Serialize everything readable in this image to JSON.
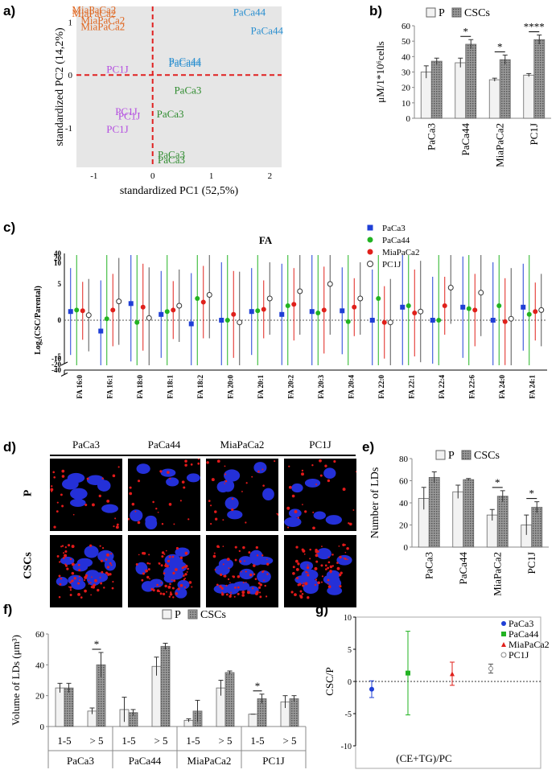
{
  "panel_labels": {
    "a": "a)",
    "b": "b)",
    "c": "c)",
    "d": "d)",
    "e": "e)",
    "f": "f)",
    "g": "g)"
  },
  "colors": {
    "PaCa3": "#1f3fd6",
    "PaCa44": "#22b322",
    "MiaPaCa2": "#e0201b",
    "PC1J": "#555555",
    "pca_PaCa3": "#2e8b2e",
    "pca_PaCa44": "#2a8fd0",
    "pca_MiaPaCa2": "#e0661f",
    "pca_PC1J": "#b44ee0",
    "dashed": "#e02020",
    "pca_bg": "#e6e6e6"
  },
  "legend_PC": {
    "P": "P",
    "CSCs": "CSCs"
  },
  "chart_data": [
    {
      "id": "a",
      "type": "scatter",
      "xlabel": "standardized PC1 (52,5%)",
      "ylabel": "standardized PC2 (14,2%)",
      "xlim": [
        -1.3,
        2.2
      ],
      "ylim": [
        -1.75,
        1.3
      ],
      "xticks": [
        -1,
        0,
        1,
        2
      ],
      "yticks": [
        1,
        0,
        -1
      ],
      "points": [
        {
          "label": "MiaPaCa2",
          "x": -1.0,
          "y": 1.25,
          "group": "MiaPaCa2"
        },
        {
          "label": "MiaPaCa2",
          "x": -1.0,
          "y": 1.18,
          "group": "MiaPaCa2"
        },
        {
          "label": "MiaPaCa2",
          "x": -0.85,
          "y": 1.05,
          "group": "MiaPaCa2"
        },
        {
          "label": "MiaPaCa2",
          "x": -0.85,
          "y": 0.93,
          "group": "MiaPaCa2"
        },
        {
          "label": "PaCa44",
          "x": 1.65,
          "y": 1.2,
          "group": "PaCa44"
        },
        {
          "label": "PaCa44",
          "x": 1.95,
          "y": 0.85,
          "group": "PaCa44"
        },
        {
          "label": "PaCa44",
          "x": 0.55,
          "y": 0.27,
          "group": "PaCa44"
        },
        {
          "label": "PaCa44",
          "x": 0.55,
          "y": 0.23,
          "group": "PaCa44"
        },
        {
          "label": "PC1J",
          "x": -0.6,
          "y": 0.12,
          "group": "PC1J"
        },
        {
          "label": "PaCa3",
          "x": 0.6,
          "y": -0.28,
          "group": "PaCa3"
        },
        {
          "label": "PC1J",
          "x": -0.45,
          "y": -0.68,
          "group": "PC1J"
        },
        {
          "label": "PC1J",
          "x": -0.4,
          "y": -0.77,
          "group": "PC1J"
        },
        {
          "label": "PaCa3",
          "x": 0.3,
          "y": -0.73,
          "group": "PaCa3"
        },
        {
          "label": "PC1J",
          "x": -0.6,
          "y": -1.02,
          "group": "PC1J"
        },
        {
          "label": "PaCa3",
          "x": 0.32,
          "y": -1.5,
          "group": "PaCa3"
        },
        {
          "label": "PaCa3",
          "x": 0.32,
          "y": -1.6,
          "group": "PaCa3"
        }
      ]
    },
    {
      "id": "b",
      "type": "bar",
      "ylabel": "μM/1*10⁶cells",
      "ylim": [
        0,
        60
      ],
      "yticks": [
        0,
        10,
        20,
        30,
        40,
        50,
        60
      ],
      "categories": [
        "PaCa3",
        "PaCa44",
        "MiaPaCa2",
        "PC1J"
      ],
      "series": [
        {
          "name": "P",
          "values": [
            30,
            36,
            25,
            28
          ],
          "errors": [
            4,
            3,
            1,
            1
          ]
        },
        {
          "name": "CSCs",
          "values": [
            37,
            48,
            38,
            51
          ],
          "errors": [
            2,
            3,
            3,
            3
          ]
        }
      ],
      "significance": [
        "",
        "*",
        "*",
        "****"
      ]
    },
    {
      "id": "c",
      "type": "scatter",
      "title": "FA",
      "ylabel": "Log₂(CSC/Parental)",
      "yticks": [
        "40",
        "20",
        "10",
        "5",
        "0",
        "-5",
        "-10",
        "-20",
        "-40"
      ],
      "categories": [
        "FA 16:0",
        "FA 16:1",
        "FA 18:0",
        "FA 18:1",
        "FA 18:2",
        "FA 20:0",
        "FA 20:1",
        "FA 20:2",
        "FA 20:3",
        "FA 20:4",
        "FA 22:0",
        "FA 22:1",
        "FA 22:4",
        "FA 22:6",
        "FA 24:0",
        "FA 24:1"
      ],
      "series": [
        {
          "name": "PaCa3",
          "values": [
            1.2,
            -1.5,
            2.3,
            0.8,
            -0.5,
            0.0,
            1.2,
            0.8,
            1.2,
            1.3,
            0.0,
            1.8,
            0.0,
            1.8,
            0.0,
            1.8
          ]
        },
        {
          "name": "PaCa44",
          "values": [
            1.4,
            0.2,
            -0.3,
            1.2,
            3.0,
            0.0,
            1.3,
            2.0,
            1.0,
            -0.2,
            3.0,
            2.0,
            0.0,
            1.6,
            2.0,
            0.8
          ]
        },
        {
          "name": "MiaPaCa2",
          "values": [
            1.3,
            1.4,
            1.8,
            1.4,
            2.5,
            0.8,
            1.5,
            2.2,
            1.4,
            1.8,
            -0.3,
            1.0,
            2.0,
            1.4,
            -0.2,
            1.2
          ]
        },
        {
          "name": "PC1J",
          "values": [
            0.7,
            2.6,
            0.3,
            2.0,
            3.5,
            -0.3,
            3.0,
            4.0,
            5.0,
            3.0,
            -0.3,
            1.2,
            4.5,
            3.8,
            0.2,
            1.4
          ]
        }
      ]
    },
    {
      "id": "e",
      "type": "bar",
      "ylabel": "Number of LDs",
      "ylim": [
        0,
        80
      ],
      "yticks": [
        0,
        20,
        40,
        60,
        80
      ],
      "categories": [
        "PaCa3",
        "PaCa44",
        "MiaPaCa2",
        "PC1J"
      ],
      "series": [
        {
          "name": "P",
          "values": [
            44,
            50,
            29,
            20
          ],
          "errors": [
            10,
            6,
            5,
            9
          ]
        },
        {
          "name": "CSCs",
          "values": [
            63,
            61,
            46,
            36
          ],
          "errors": [
            5,
            1,
            5,
            5
          ]
        }
      ],
      "significance": [
        "",
        "",
        "*",
        "*"
      ]
    },
    {
      "id": "f",
      "type": "bar",
      "ylabel": "Volume of LDs (μm³)",
      "ylim": [
        0,
        60
      ],
      "yticks": [
        0,
        20,
        40,
        60
      ],
      "groups": [
        "PaCa3",
        "PaCa44",
        "MiaPaCa2",
        "PC1J"
      ],
      "categories": [
        "1-5",
        "> 5",
        "1-5",
        "> 5",
        "1-5",
        "> 5",
        "1-5",
        "> 5"
      ],
      "series": [
        {
          "name": "P",
          "values": [
            25,
            10,
            11,
            39,
            4,
            25,
            8,
            16
          ],
          "errors": [
            3,
            2,
            8,
            6,
            1,
            5,
            0,
            4
          ]
        },
        {
          "name": "CSCs",
          "values": [
            25,
            40,
            9,
            52,
            10,
            35,
            18,
            18
          ],
          "errors": [
            3,
            8,
            2,
            2,
            7,
            1,
            3,
            2
          ]
        }
      ],
      "significance": [
        "",
        "*",
        "",
        "",
        "",
        "",
        "*",
        ""
      ]
    },
    {
      "id": "g",
      "type": "scatter",
      "ylabel": "CSC/P",
      "xlabel": "(CE+TG)/PC",
      "ylim": [
        -10,
        10
      ],
      "yticks": [
        10,
        5,
        0,
        -5,
        -10
      ],
      "series": [
        {
          "name": "PaCa3",
          "value": -1.2,
          "error": 1.3
        },
        {
          "name": "PaCa44",
          "value": 1.3,
          "error": 6.5
        },
        {
          "name": "MiaPaCa2",
          "value": 1.2,
          "error": 1.8
        },
        {
          "name": "PC1J",
          "value": 2.0,
          "error": 0.7
        }
      ]
    }
  ],
  "micrograph": {
    "columns": [
      "PaCa3",
      "PaCa44",
      "MiaPaCa2",
      "PC1J"
    ],
    "rows": [
      "P",
      "CSCs"
    ]
  }
}
